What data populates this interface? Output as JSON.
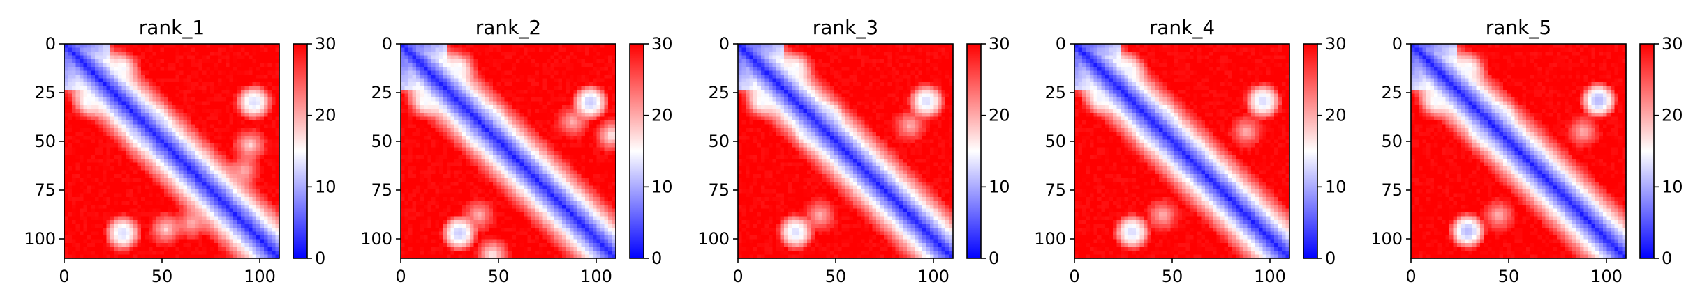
{
  "chart_data": [
    {
      "type": "heatmap",
      "title": "rank_1",
      "x_ticks": [
        0,
        50,
        100
      ],
      "y_ticks": [
        0,
        25,
        50,
        75,
        100
      ],
      "x_range": [
        0,
        110
      ],
      "y_range": [
        0,
        110
      ],
      "y_inverted": true,
      "colorbar": {
        "ticks": [
          0,
          10,
          20,
          30
        ],
        "range": [
          0,
          30
        ],
        "colors": [
          "#0000ff",
          "#ffffff",
          "#ff0000"
        ]
      },
      "features": [
        {
          "x": 30,
          "y": 12,
          "v": 14
        },
        {
          "x": 98,
          "y": 30,
          "v": 13
        },
        {
          "x": 40,
          "y": 45,
          "v": 12
        },
        {
          "x": 30,
          "y": 96,
          "v": 13
        },
        {
          "x": 52,
          "y": 95,
          "v": 17
        },
        {
          "x": 92,
          "y": 65,
          "v": 19
        }
      ]
    },
    {
      "type": "heatmap",
      "title": "rank_2",
      "x_ticks": [
        0,
        50,
        100
      ],
      "y_ticks": [
        0,
        25,
        50,
        75,
        100
      ],
      "x_range": [
        0,
        110
      ],
      "y_range": [
        0,
        110
      ],
      "y_inverted": true,
      "colorbar": {
        "ticks": [
          0,
          10,
          20,
          30
        ],
        "range": [
          0,
          30
        ],
        "colors": [
          "#0000ff",
          "#ffffff",
          "#ff0000"
        ]
      },
      "features": [
        {
          "x": 30,
          "y": 12,
          "v": 14
        },
        {
          "x": 97,
          "y": 30,
          "v": 12
        },
        {
          "x": 40,
          "y": 45,
          "v": 12
        },
        {
          "x": 30,
          "y": 97,
          "v": 12
        },
        {
          "x": 108,
          "y": 47,
          "v": 15
        },
        {
          "x": 88,
          "y": 40,
          "v": 19
        }
      ]
    },
    {
      "type": "heatmap",
      "title": "rank_3",
      "x_ticks": [
        0,
        50,
        100
      ],
      "y_ticks": [
        0,
        25,
        50,
        75,
        100
      ],
      "x_range": [
        0,
        110
      ],
      "y_range": [
        0,
        110
      ],
      "y_inverted": true,
      "colorbar": {
        "ticks": [
          0,
          10,
          20,
          30
        ],
        "range": [
          0,
          30
        ],
        "colors": [
          "#0000ff",
          "#ffffff",
          "#ff0000"
        ]
      },
      "features": [
        {
          "x": 30,
          "y": 12,
          "v": 14
        },
        {
          "x": 96,
          "y": 29,
          "v": 13
        },
        {
          "x": 38,
          "y": 45,
          "v": 12
        },
        {
          "x": 30,
          "y": 97,
          "v": 13
        },
        {
          "x": 88,
          "y": 42,
          "v": 19
        }
      ]
    },
    {
      "type": "heatmap",
      "title": "rank_4",
      "x_ticks": [
        0,
        50,
        100
      ],
      "y_ticks": [
        0,
        25,
        50,
        75,
        100
      ],
      "x_range": [
        0,
        110
      ],
      "y_range": [
        0,
        110
      ],
      "y_inverted": true,
      "colorbar": {
        "ticks": [
          0,
          10,
          20,
          30
        ],
        "range": [
          0,
          30
        ],
        "colors": [
          "#0000ff",
          "#ffffff",
          "#ff0000"
        ]
      },
      "features": [
        {
          "x": 28,
          "y": 13,
          "v": 14
        },
        {
          "x": 96,
          "y": 29,
          "v": 12
        },
        {
          "x": 40,
          "y": 45,
          "v": 12
        },
        {
          "x": 30,
          "y": 97,
          "v": 13
        },
        {
          "x": 88,
          "y": 45,
          "v": 19
        }
      ]
    },
    {
      "type": "heatmap",
      "title": "rank_5",
      "x_ticks": [
        0,
        50,
        100
      ],
      "y_ticks": [
        0,
        25,
        50,
        75,
        100
      ],
      "x_range": [
        0,
        110
      ],
      "y_range": [
        0,
        110
      ],
      "y_inverted": true,
      "colorbar": {
        "ticks": [
          0,
          10,
          20,
          30
        ],
        "range": [
          0,
          30
        ],
        "colors": [
          "#0000ff",
          "#ffffff",
          "#ff0000"
        ]
      },
      "features": [
        {
          "x": 30,
          "y": 12,
          "v": 14
        },
        {
          "x": 96,
          "y": 29,
          "v": 10
        },
        {
          "x": 38,
          "y": 45,
          "v": 12
        },
        {
          "x": 29,
          "y": 96,
          "v": 11
        },
        {
          "x": 88,
          "y": 45,
          "v": 19
        }
      ]
    }
  ]
}
